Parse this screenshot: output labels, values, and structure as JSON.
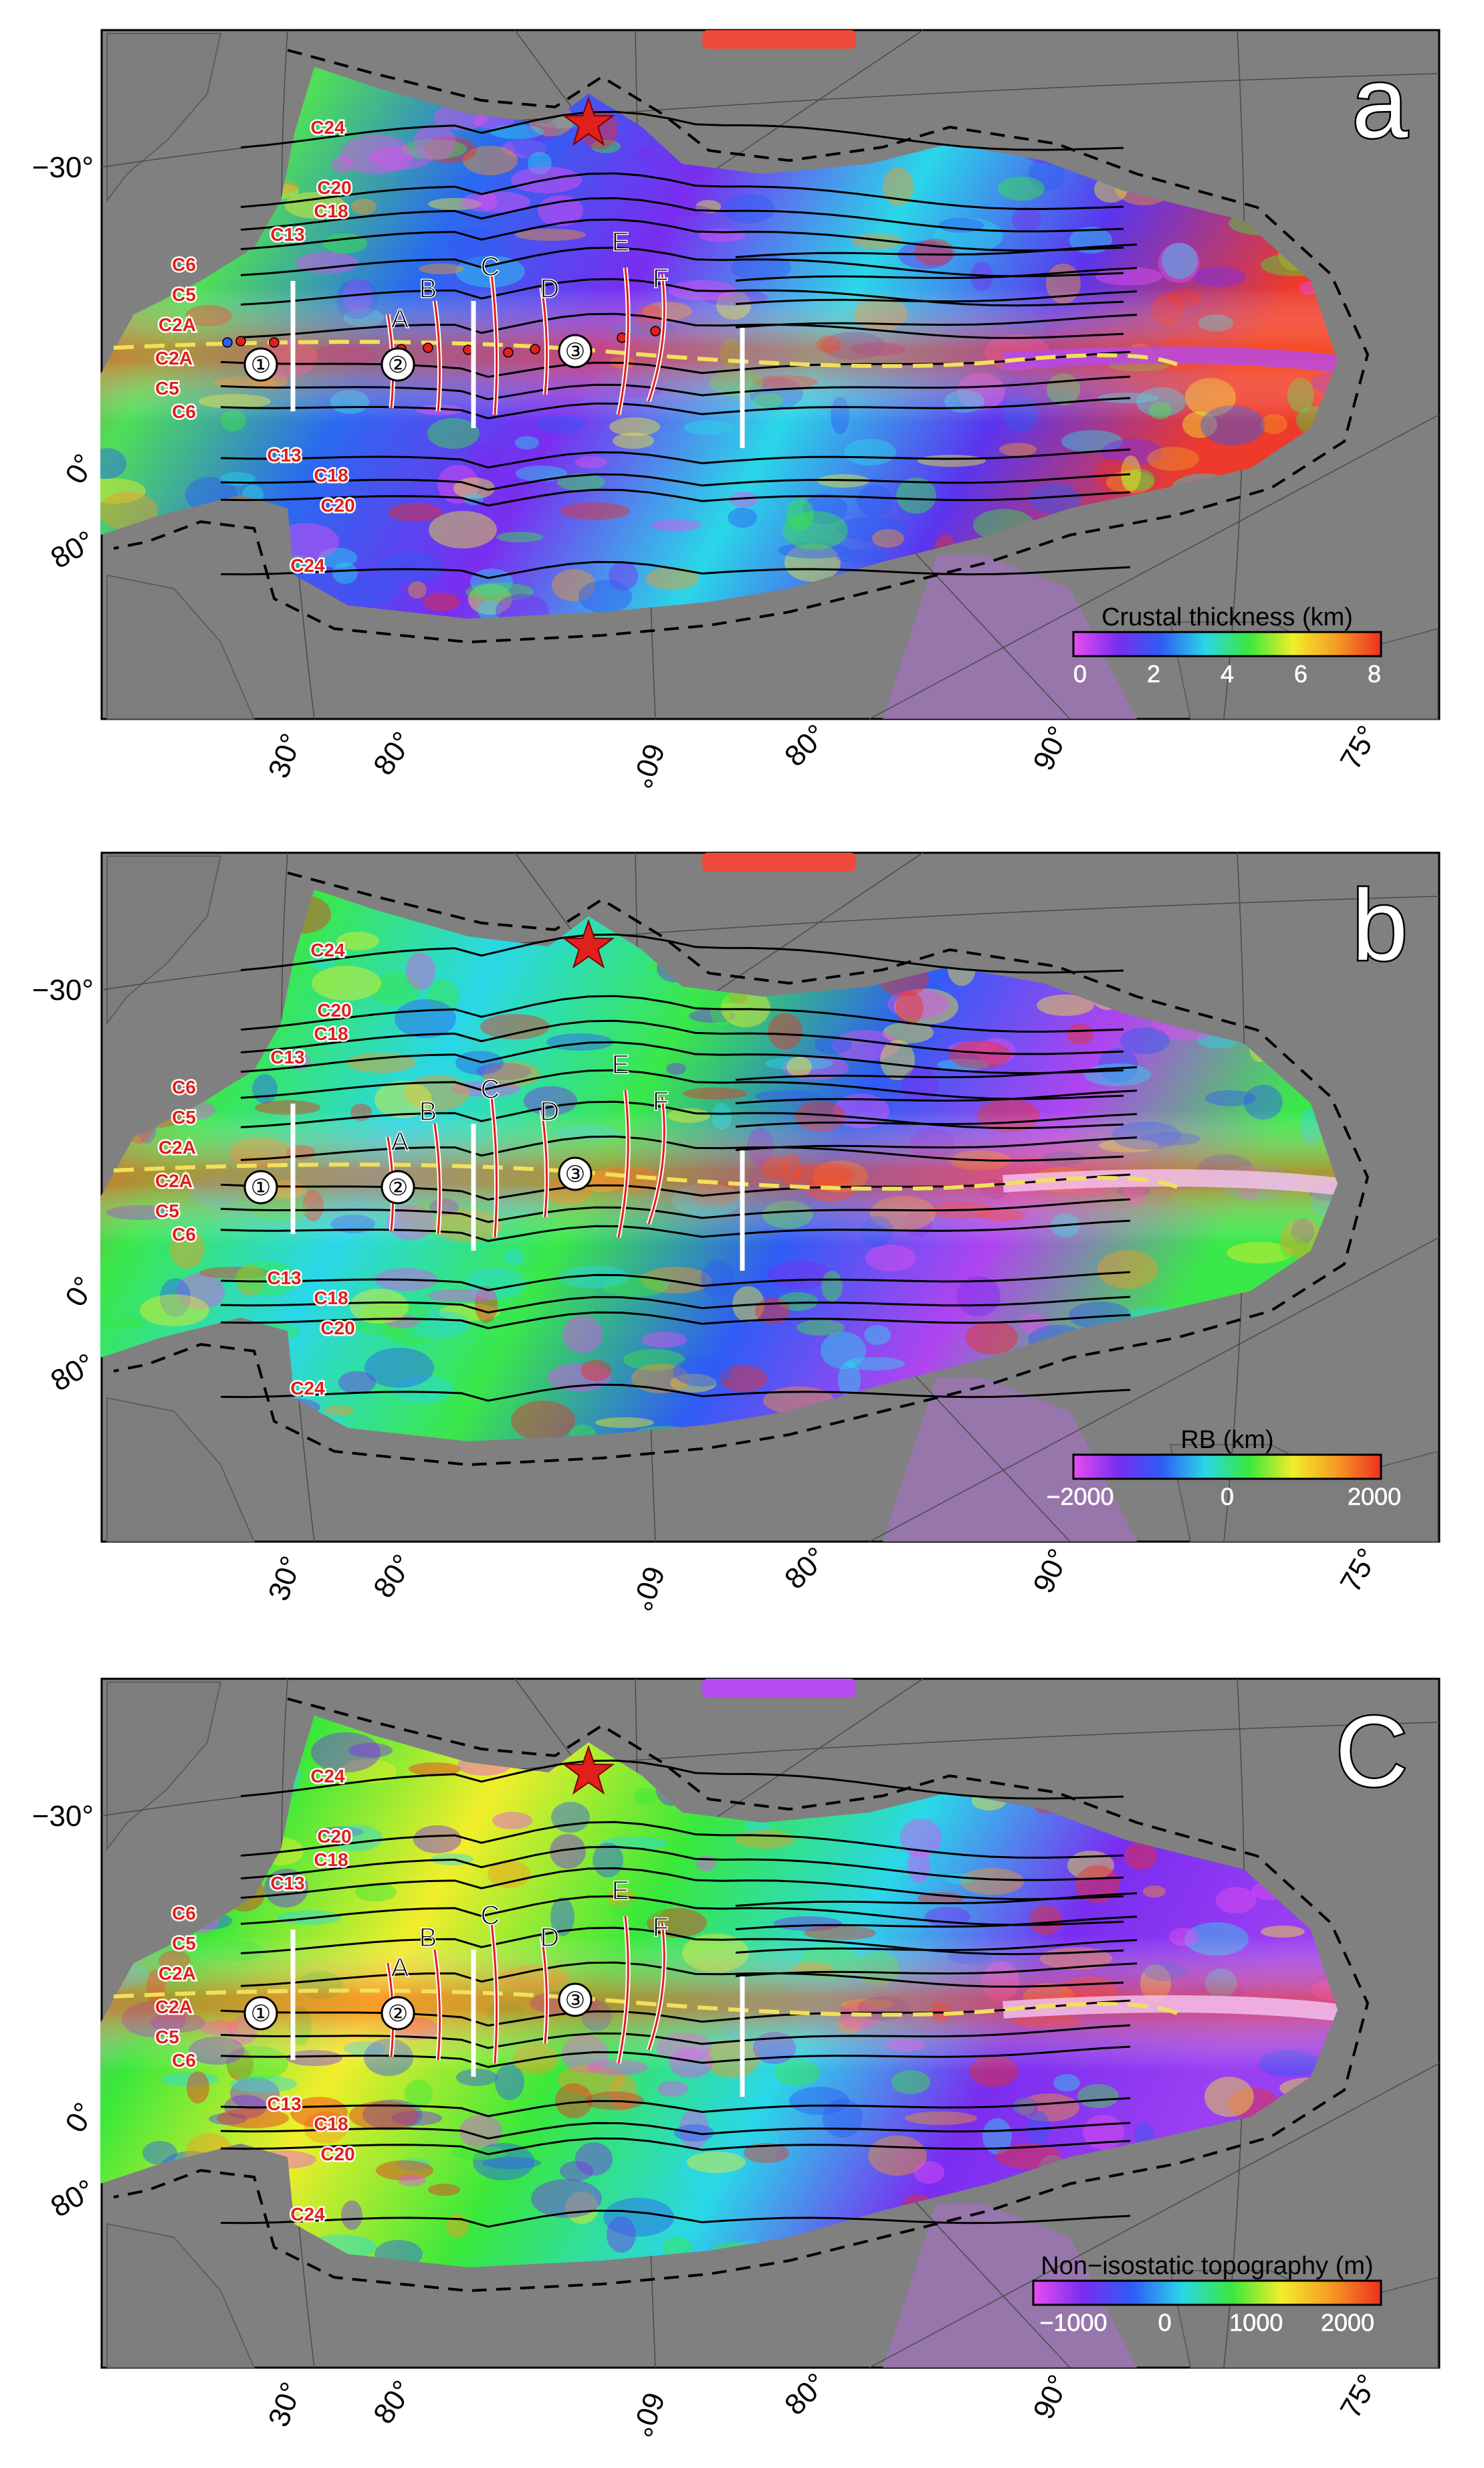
{
  "panels": [
    {
      "letter": "a",
      "colorbar": {
        "title": "Crustal thickness (km)",
        "ticks": [
          "0",
          "2",
          "4",
          "6",
          "8"
        ],
        "stops": [
          "#e64ef0",
          "#7a2df0",
          "#2f5cf5",
          "#2ad7e8",
          "#39e83b",
          "#f2ee2a",
          "#f59a24",
          "#ee2f22"
        ]
      },
      "markers": [
        "①",
        "②",
        "③"
      ]
    },
    {
      "letter": "b",
      "colorbar": {
        "title": "RB (km)",
        "ticks": [
          "−2000",
          "0",
          "2000"
        ],
        "stops": [
          "#e64ef0",
          "#7a2df0",
          "#2f5cf5",
          "#2ad7e8",
          "#39e83b",
          "#f2ee2a",
          "#f59a24",
          "#ee2f22"
        ]
      },
      "markers": [
        "①",
        "②",
        "③"
      ]
    },
    {
      "letter": "C",
      "colorbar": {
        "title": "Non−isostatic topography (m)",
        "ticks": [
          "−1000",
          "0",
          "1000",
          "2000"
        ],
        "stops": [
          "#e64ef0",
          "#7a2df0",
          "#2f5cf5",
          "#2ad7e8",
          "#39e83b",
          "#f2ee2a",
          "#f59a24",
          "#ee2f22"
        ]
      },
      "markers": [
        "①",
        "②",
        "③"
      ]
    }
  ],
  "chrons_north": [
    "C24",
    "C20",
    "C18",
    "C13",
    "C6",
    "C5",
    "C2A"
  ],
  "chrons_south": [
    "C2A",
    "C5",
    "C6",
    "C13",
    "C18",
    "C20",
    "C24"
  ],
  "segments": [
    "A",
    "B",
    "C",
    "D",
    "E",
    "F"
  ],
  "graticule": {
    "left": [
      "−30°",
      "0°",
      "80°"
    ],
    "bottom": [
      "30°",
      "80°",
      "60°",
      "80°",
      "90°",
      "75°"
    ]
  },
  "colors": {
    "background": "#808080",
    "land": "#7d7d7d",
    "purple_region": "#9b74b4",
    "chron_label": "#e0201c",
    "star": "#e0201c",
    "isochron": "#000000",
    "ridge_axis": "#f1e05a"
  }
}
